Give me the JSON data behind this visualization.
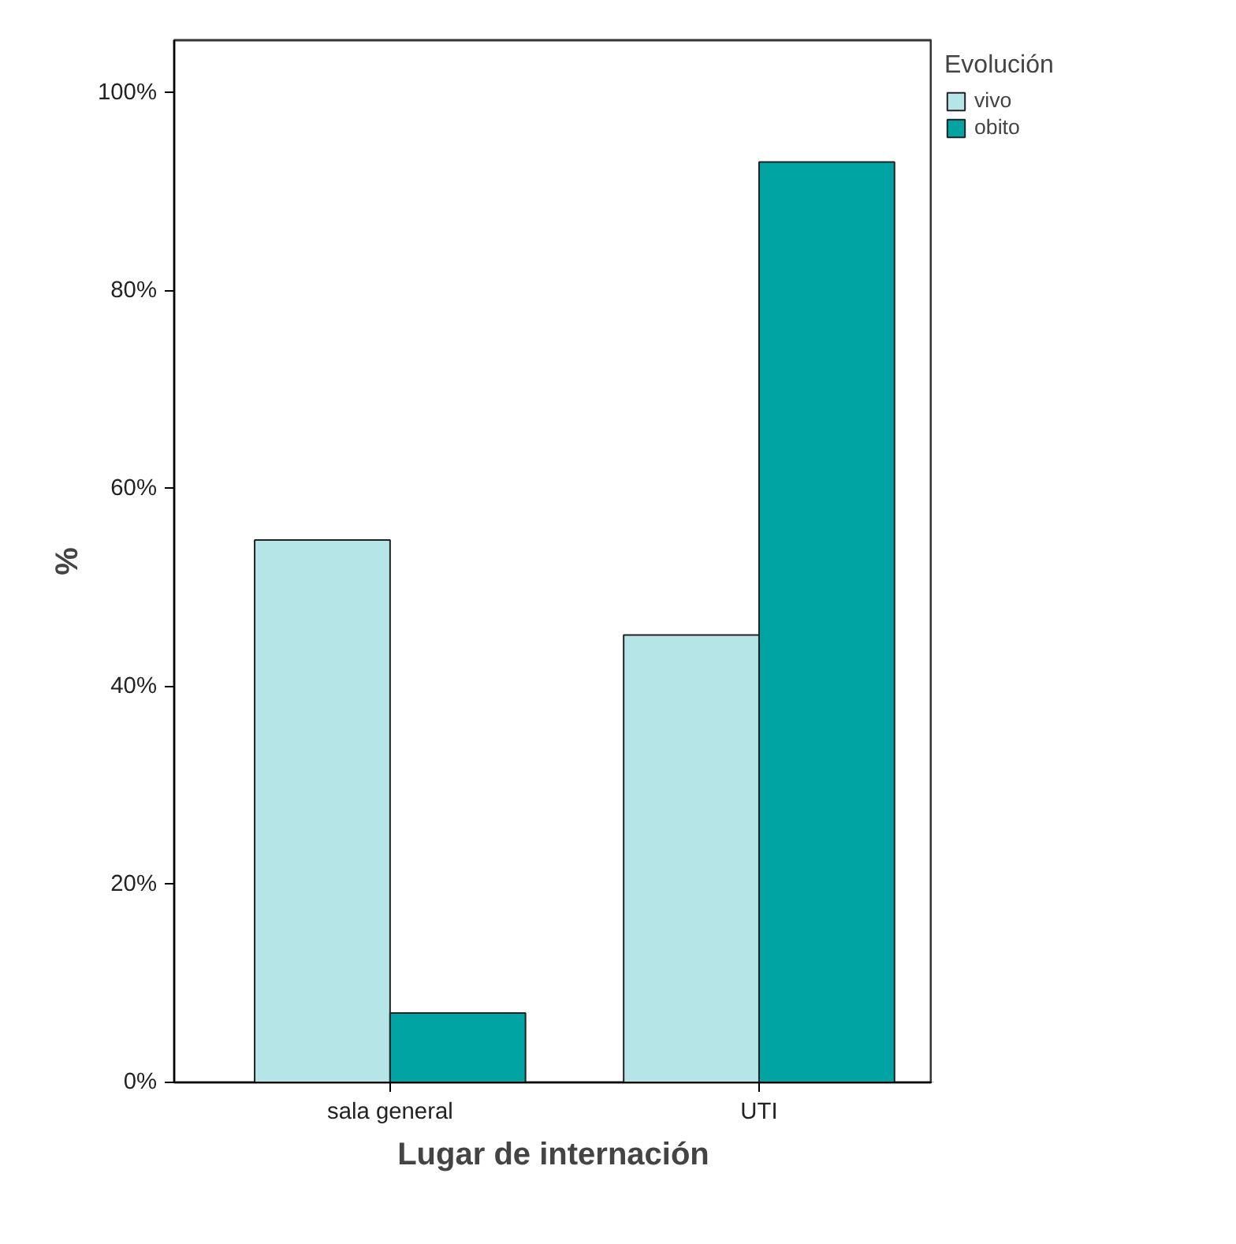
{
  "chart_data": {
    "type": "bar",
    "xlabel": "Lugar de internación",
    "ylabel": "%",
    "legend_title": "Evolución",
    "categories": [
      "sala general",
      "UTI"
    ],
    "series": [
      {
        "name": "vivo",
        "color": "#b5e5e7",
        "values": [
          54.8,
          45.2
        ]
      },
      {
        "name": "obito",
        "color": "#00a5a3",
        "values": [
          7.0,
          93.0
        ]
      }
    ],
    "ylim": [
      0,
      105.3
    ],
    "yticks": [
      {
        "value": 0,
        "label": "0%"
      },
      {
        "value": 20,
        "label": "20%"
      },
      {
        "value": 40,
        "label": "40%"
      },
      {
        "value": 60,
        "label": "60%"
      },
      {
        "value": 80,
        "label": "80%"
      },
      {
        "value": 100,
        "label": "100%"
      }
    ],
    "grid": false,
    "legend": "right"
  }
}
